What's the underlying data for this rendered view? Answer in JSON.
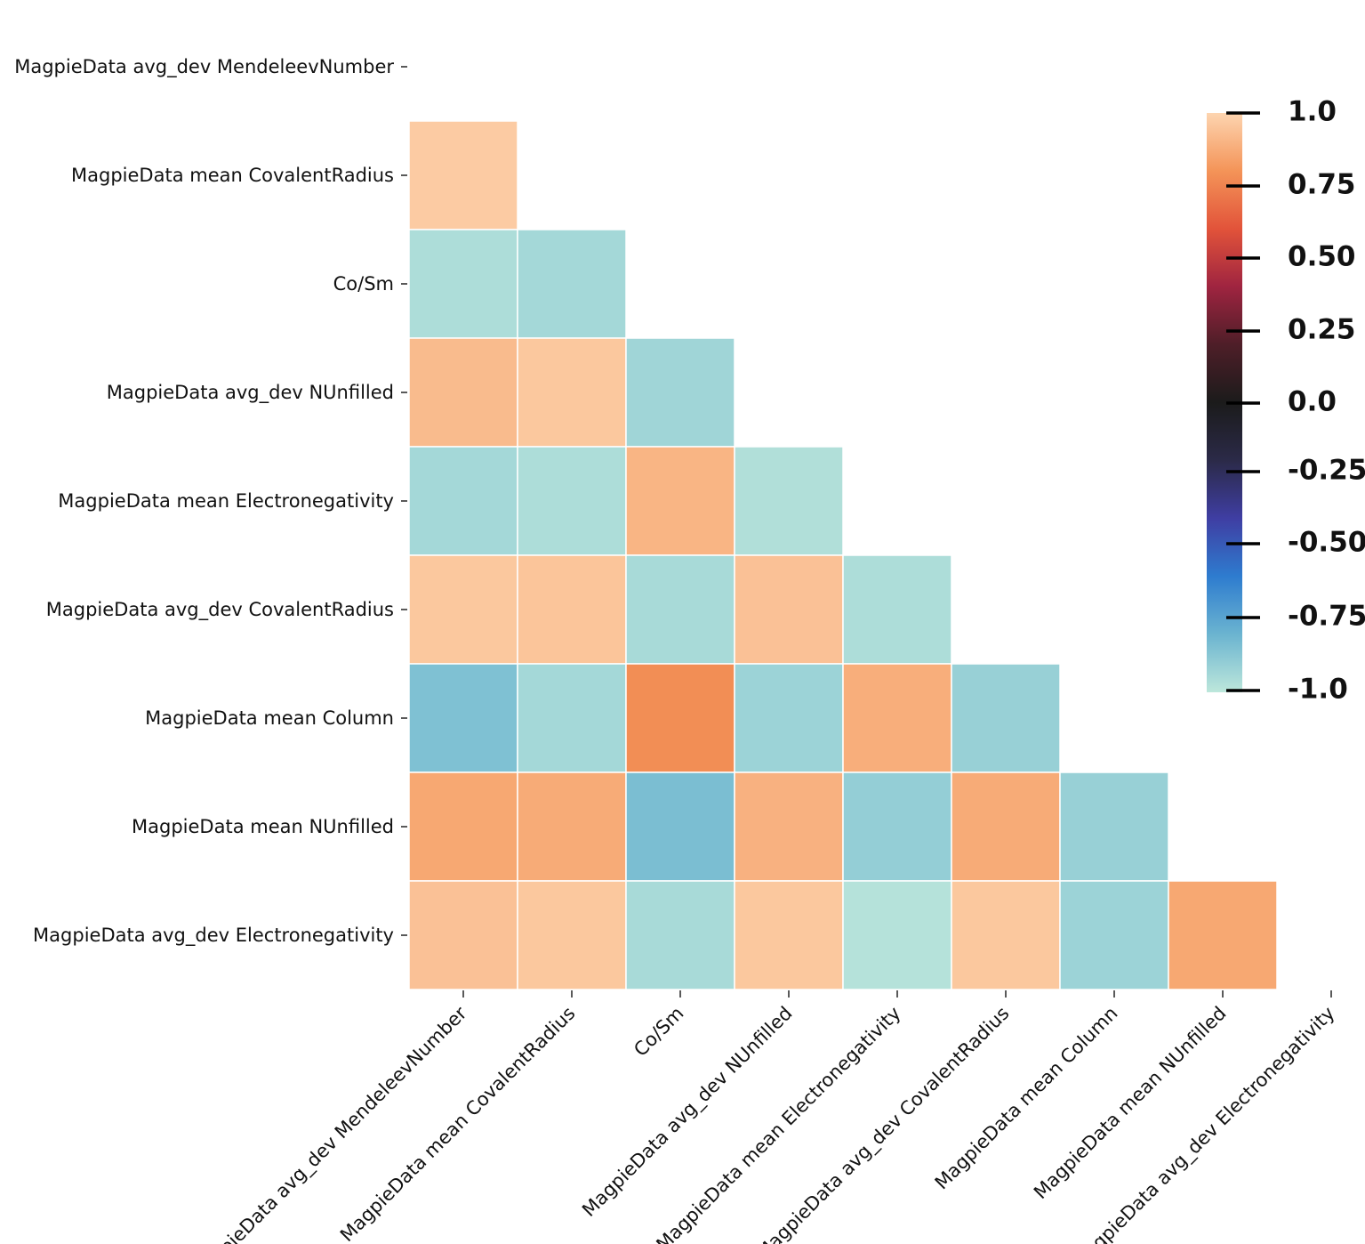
{
  "chart_data": {
    "type": "heatmap",
    "title": "",
    "variables": [
      "MagpieData avg_dev MendeleevNumber",
      "MagpieData mean CovalentRadius",
      "Co/Sm",
      "MagpieData avg_dev NUnfilled",
      "MagpieData mean Electronegativity",
      "MagpieData avg_dev CovalentRadius",
      "MagpieData mean Column",
      "MagpieData mean NUnfilled",
      "MagpieData avg_dev Electronegativity"
    ],
    "mask": "upper-triangle-including-diagonal",
    "matrix": [
      [
        null,
        null,
        null,
        null,
        null,
        null,
        null,
        null,
        null
      ],
      [
        0.97,
        null,
        null,
        null,
        null,
        null,
        null,
        null,
        null
      ],
      [
        -0.96,
        -0.94,
        null,
        null,
        null,
        null,
        null,
        null,
        null
      ],
      [
        0.92,
        0.96,
        -0.93,
        null,
        null,
        null,
        null,
        null,
        null
      ],
      [
        -0.94,
        -0.96,
        0.9,
        -0.97,
        null,
        null,
        null,
        null,
        null
      ],
      [
        0.96,
        0.95,
        -0.95,
        0.94,
        -0.96,
        null,
        null,
        null,
        null
      ],
      [
        -0.85,
        -0.94,
        0.78,
        -0.92,
        0.88,
        -0.91,
        null,
        null,
        null
      ],
      [
        0.86,
        0.87,
        -0.84,
        0.89,
        -0.9,
        0.87,
        -0.91,
        null,
        null
      ],
      [
        0.94,
        0.96,
        -0.95,
        0.96,
        -0.98,
        0.96,
        -0.92,
        0.86,
        null
      ]
    ],
    "colorbar": {
      "min": -1.0,
      "max": 1.0,
      "ticks": [
        1.0,
        0.75,
        0.5,
        0.25,
        0.0,
        -0.25,
        -0.5,
        -0.75,
        -1.0
      ],
      "tick_labels": [
        "1.0",
        "0.75",
        "0.50",
        "0.25",
        "0.0",
        "-0.25",
        "-0.50",
        "-0.75",
        "-1.0"
      ],
      "colormap": "icefire"
    }
  }
}
